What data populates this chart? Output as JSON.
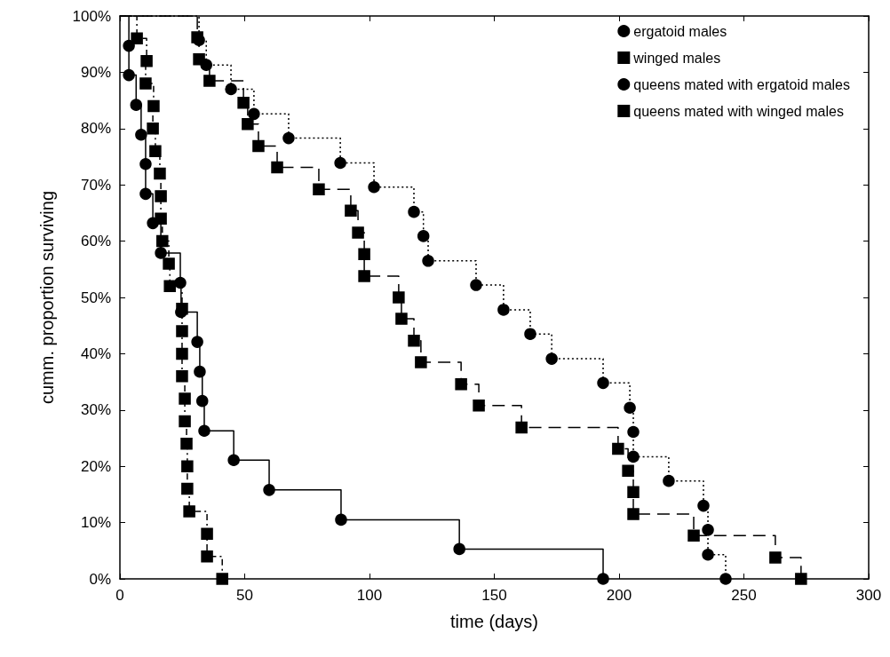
{
  "chart_data": {
    "type": "step",
    "xlabel": "time (days)",
    "ylabel": "cumm. proportion surviving",
    "xlim": [
      0,
      300
    ],
    "xticks": [
      0,
      50,
      100,
      150,
      200,
      250,
      300
    ],
    "ylim": [
      0,
      100
    ],
    "yticks": [
      {
        "value": 0,
        "label": "0%"
      },
      {
        "value": 10,
        "label": "10%"
      },
      {
        "value": 20,
        "label": "20%"
      },
      {
        "value": 30,
        "label": "30%"
      },
      {
        "value": 40,
        "label": "40%"
      },
      {
        "value": 50,
        "label": "50%"
      },
      {
        "value": 60,
        "label": "60%"
      },
      {
        "value": 70,
        "label": "70%"
      },
      {
        "value": 80,
        "label": "80%"
      },
      {
        "value": 90,
        "label": "90%"
      },
      {
        "value": 100,
        "label": "100%"
      }
    ],
    "grid": false,
    "legend": "top right",
    "series": [
      {
        "name": "ergatoid males",
        "color": "#000000",
        "marker": "circle",
        "line_style": "solid",
        "x": [
          0,
          3.6,
          3.6,
          6.5,
          8.5,
          10.3,
          10.3,
          13.2,
          16.4,
          24.2,
          24.5,
          31,
          32,
          33,
          33.8,
          45.6,
          59.8,
          88.6,
          136,
          193.6
        ],
        "values": [
          100,
          94.7,
          89.5,
          84.2,
          78.9,
          73.7,
          68.4,
          63.2,
          57.9,
          52.6,
          47.4,
          42.1,
          36.8,
          31.6,
          26.3,
          21.1,
          15.8,
          10.5,
          5.3,
          0
        ]
      },
      {
        "name": "winged males",
        "color": "#000000",
        "marker": "square",
        "line_style": "dashdot",
        "x": [
          0,
          6.8,
          10.7,
          10.3,
          13.5,
          13.2,
          14.2,
          16,
          16.4,
          16.4,
          17,
          19.6,
          20,
          24.9,
          24.9,
          24.9,
          24.9,
          26,
          26,
          26.7,
          27,
          27,
          27.8,
          34.9,
          34.9,
          41
        ],
        "values": [
          100,
          96,
          92,
          88,
          84,
          80,
          76,
          72,
          68,
          64,
          60,
          56,
          52,
          48,
          44,
          40,
          36,
          32,
          28,
          24,
          20,
          16,
          12,
          8,
          4,
          0
        ]
      },
      {
        "name": "queens mated with ergatoid males",
        "color": "#000000",
        "marker": "circle",
        "line_style": "dotted",
        "x": [
          0,
          31.7,
          34.6,
          44.5,
          53.7,
          67.6,
          88.3,
          101.8,
          117.8,
          121.6,
          123.5,
          142.7,
          153.7,
          164.4,
          173,
          193.6,
          204.3,
          205.7,
          205.7,
          219.9,
          233.8,
          235.6,
          235.6,
          242.7
        ],
        "values": [
          100,
          95.7,
          91.3,
          87,
          82.6,
          78.3,
          73.9,
          69.6,
          65.2,
          60.9,
          56.5,
          52.2,
          47.8,
          43.5,
          39.1,
          34.8,
          30.4,
          26.1,
          21.7,
          17.4,
          13,
          8.7,
          4.3,
          0
        ]
      },
      {
        "name": "queens mated with winged males",
        "color": "#000000",
        "marker": "square",
        "line_style": "dashed",
        "x": [
          0,
          31,
          31.7,
          35.9,
          49.5,
          51.2,
          55.5,
          63,
          79.7,
          92.5,
          95.4,
          97.9,
          97.9,
          111.7,
          112.8,
          117.8,
          120.6,
          136.7,
          143.8,
          160.9,
          199.6,
          203.6,
          205.7,
          205.7,
          229.9,
          262.6,
          272.9
        ],
        "values": [
          100,
          96.2,
          92.3,
          88.5,
          84.6,
          80.8,
          76.9,
          73.1,
          69.2,
          65.4,
          61.5,
          57.7,
          53.8,
          50,
          46.2,
          42.3,
          38.5,
          34.6,
          30.8,
          26.9,
          23.1,
          19.2,
          15.4,
          11.5,
          7.7,
          3.8,
          0
        ]
      }
    ]
  }
}
